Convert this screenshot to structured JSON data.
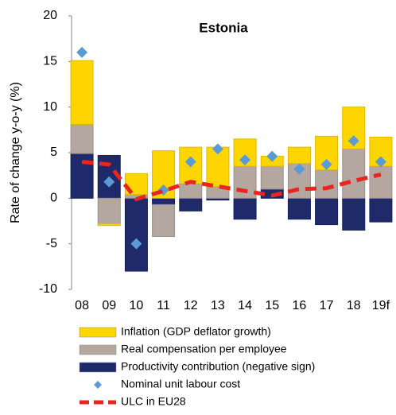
{
  "chart_data": {
    "type": "bar",
    "title": "Estonia",
    "y_label": "Rate of change y-o-y (%)",
    "categories": [
      "08",
      "09",
      "10",
      "11",
      "12",
      "13",
      "14",
      "15",
      "16",
      "17",
      "18",
      "19f"
    ],
    "ylim": [
      -10,
      20
    ],
    "yticks": [
      -10,
      -5,
      0,
      5,
      10,
      15,
      20
    ],
    "stacked": true,
    "series": [
      {
        "name": "Inflation (GDP deflator growth)",
        "type": "bar",
        "color": "#ffd500",
        "values": [
          7.0,
          -0.2,
          2.3,
          5.2,
          4.0,
          4.3,
          3.0,
          1.1,
          1.8,
          3.7,
          4.6,
          3.2
        ]
      },
      {
        "name": "Real compensation per employee",
        "type": "bar",
        "color": "#b3a79f",
        "values": [
          3.2,
          -2.8,
          0.4,
          -3.5,
          1.6,
          1.3,
          3.5,
          2.5,
          3.8,
          3.1,
          5.4,
          3.5
        ]
      },
      {
        "name": "Productivity contribution (negative sign)",
        "type": "bar",
        "color": "#1f2a6b",
        "values": [
          4.9,
          4.7,
          -8.0,
          -0.7,
          -1.4,
          -0.2,
          -2.3,
          1.0,
          -2.3,
          -2.9,
          -3.5,
          -2.6
        ]
      },
      {
        "name": "Nominal unit labour cost",
        "type": "scatter",
        "color": "#5b9bd5",
        "values": [
          16.0,
          1.8,
          -5.0,
          0.9,
          4.0,
          5.4,
          4.2,
          4.6,
          3.2,
          3.7,
          6.3,
          4.0
        ]
      },
      {
        "name": "ULC in EU28",
        "type": "line",
        "color": "#e8251f",
        "values": [
          4.0,
          3.7,
          -0.1,
          0.8,
          1.8,
          1.3,
          0.8,
          0.3,
          1.0,
          1.1,
          1.9,
          2.6
        ]
      }
    ]
  }
}
